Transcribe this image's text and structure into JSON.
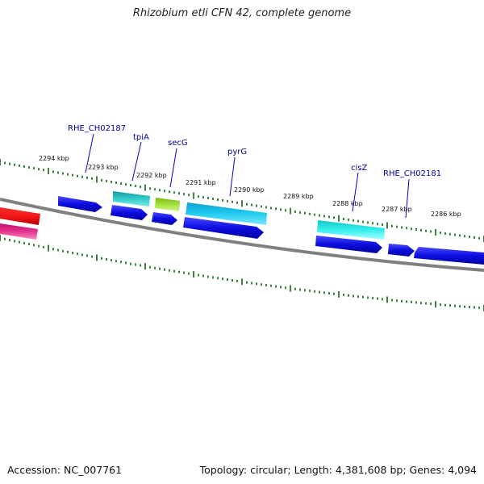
{
  "title": "Rhizobium etli CFN 42, complete genome",
  "footer": {
    "accession": "Accession: NC_007761",
    "summary": "Topology: circular; Length: 4,381,608 bp; Genes: 4,094"
  },
  "colors": {
    "backbone": "#808080",
    "ticks": "#227722",
    "gene_label": "#000099",
    "cds_blue": "#1111dd",
    "cds_teal": "#22bbbb",
    "cds_green": "#a4e23a",
    "cds_cyan": "#22ccee",
    "cds_aqua": "#33eeee",
    "cds_red": "#ee1111",
    "cds_pink": "#e6338c"
  },
  "kbp_labels": [
    "2294 kbp",
    "2293 kbp",
    "2292 kbp",
    "2291 kbp",
    "2290 kbp",
    "2289 kbp",
    "2288 kbp",
    "2287 kbp",
    "2286 kbp"
  ],
  "gene_labels": [
    "RHE_CH02187",
    "tpiA",
    "secG",
    "pyrG",
    "cisZ",
    "RHE_CH02181"
  ]
}
